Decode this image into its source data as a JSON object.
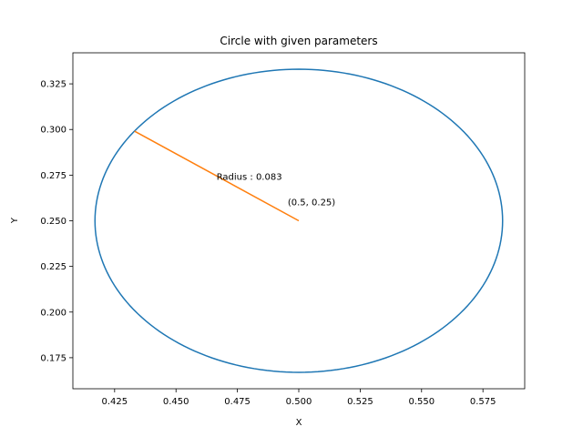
{
  "chart_data": {
    "type": "line",
    "title": "Circle with given parameters",
    "xlabel": "X",
    "ylabel": "Y",
    "xlim": [
      0.408,
      0.592
    ],
    "ylim": [
      0.158,
      0.342
    ],
    "xticks": [
      0.425,
      0.45,
      0.475,
      0.5,
      0.525,
      0.55,
      0.575
    ],
    "xtick_labels": [
      "0.425",
      "0.450",
      "0.475",
      "0.500",
      "0.525",
      "0.550",
      "0.575"
    ],
    "yticks": [
      0.175,
      0.2,
      0.225,
      0.25,
      0.275,
      0.3,
      0.325
    ],
    "ytick_labels": [
      "0.175",
      "0.200",
      "0.225",
      "0.250",
      "0.275",
      "0.300",
      "0.325"
    ],
    "grid": false,
    "circle": {
      "center_x": 0.5,
      "center_y": 0.25,
      "radius": 0.083,
      "color": "#1f77b4"
    },
    "radius_line": {
      "x": [
        0.5,
        0.4331
      ],
      "y": [
        0.25,
        0.2991
      ],
      "color": "#ff7f0e"
    },
    "annotations": [
      {
        "text": "Radius :  0.083",
        "x": 0.4665,
        "y": 0.2725
      },
      {
        "text": "(0.5, 0.25)",
        "x": 0.4955,
        "y": 0.2585
      }
    ]
  }
}
